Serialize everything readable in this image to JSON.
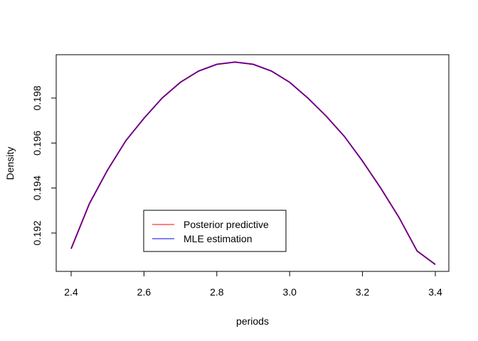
{
  "chart_data": {
    "type": "line",
    "title": "",
    "xlabel": "periods",
    "ylabel": "Density",
    "xlim": [
      2.4,
      3.4
    ],
    "ylim": [
      0.1912,
      0.1996
    ],
    "x_ticks": [
      "2.4",
      "2.6",
      "2.8",
      "3.0",
      "3.2",
      "3.4"
    ],
    "y_ticks": [
      "0.192",
      "0.194",
      "0.196",
      "0.198"
    ],
    "grid": false,
    "legend_position": "bottom-left",
    "x": [
      2.4,
      2.45,
      2.5,
      2.55,
      2.6,
      2.65,
      2.7,
      2.75,
      2.8,
      2.85,
      2.9,
      2.95,
      3.0,
      3.05,
      3.1,
      3.15,
      3.2,
      3.25,
      3.3,
      3.35,
      3.4
    ],
    "series": [
      {
        "name": "Posterior predictive",
        "color": "#ff0000",
        "values": [
          0.1913,
          0.1933,
          0.1948,
          0.1961,
          0.1971,
          0.198,
          0.1987,
          0.1992,
          0.1995,
          0.1996,
          0.1995,
          0.1992,
          0.1987,
          0.198,
          0.1972,
          0.1963,
          0.1952,
          0.194,
          0.1927,
          0.1912,
          0.1906
        ]
      },
      {
        "name": "MLE estimation",
        "color": "#0000ff",
        "values": [
          0.1913,
          0.1933,
          0.1948,
          0.1961,
          0.1971,
          0.198,
          0.1987,
          0.1992,
          0.1995,
          0.1996,
          0.1995,
          0.1992,
          0.1987,
          0.198,
          0.1972,
          0.1963,
          0.1952,
          0.194,
          0.1927,
          0.1912,
          0.1906
        ]
      }
    ]
  }
}
